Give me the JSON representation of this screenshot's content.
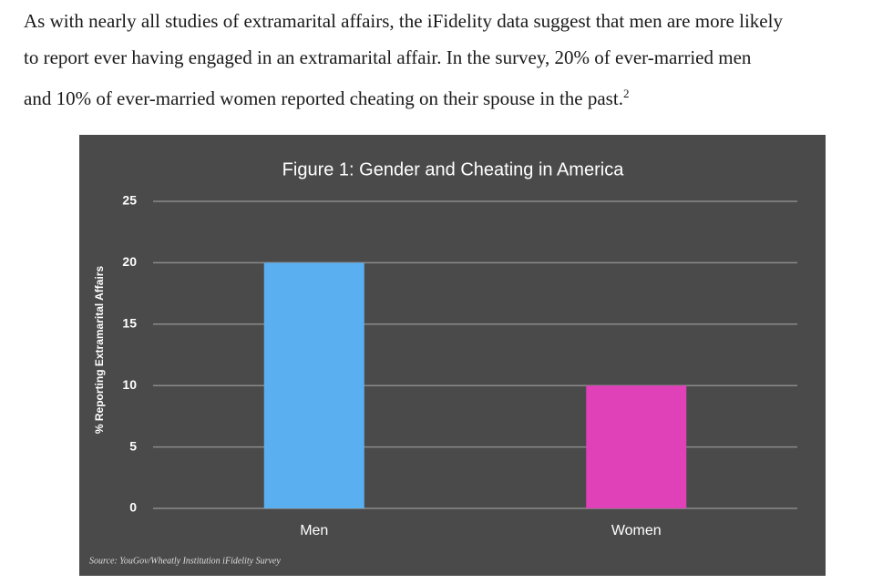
{
  "paragraph": {
    "lines": [
      "As with nearly all studies of extramarital affairs, the iFidelity data suggest that men are more likely",
      "to report ever having engaged in an extramarital affair. In the survey, 20% of ever-married men",
      "and 10% of ever-married women reported cheating on their spouse in the past."
    ],
    "footnote_ref": "2"
  },
  "chart_data": {
    "type": "bar",
    "title": "Figure 1: Gender and Cheating in America",
    "y_label": "% Reporting Extramarital Affairs",
    "categories": [
      "Men",
      "Women"
    ],
    "values": [
      20,
      10
    ],
    "colors": [
      "#5aaff0",
      "#e040b8"
    ],
    "ylim": [
      0,
      25
    ],
    "yticks": [
      0,
      5,
      10,
      15,
      20,
      25
    ],
    "grid": true,
    "source": "Source: YouGov/Wheatly Institution iFidelity Survey"
  }
}
